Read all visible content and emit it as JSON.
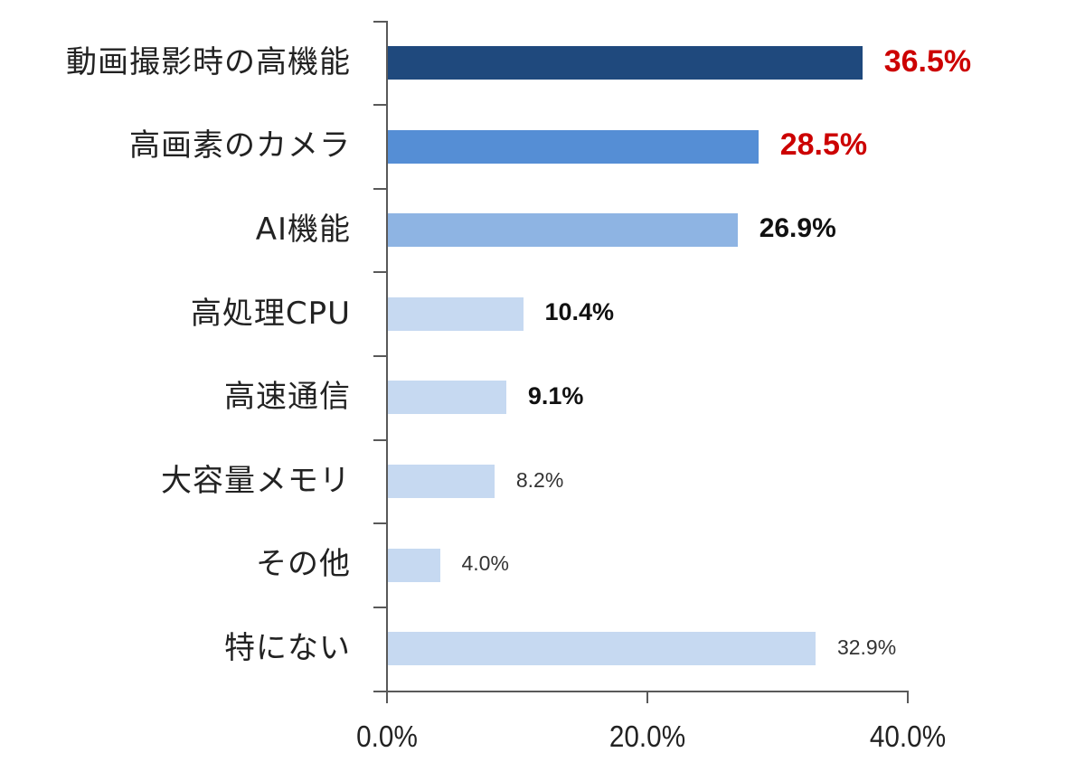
{
  "chart_data": {
    "type": "bar",
    "orientation": "horizontal",
    "title": "",
    "xlabel": "",
    "ylabel": "",
    "xlim": [
      0,
      40
    ],
    "x_ticks": [
      "0.0%",
      "20.0%",
      "40.0%"
    ],
    "grid": false,
    "legend": null,
    "categories": [
      "動画撮影時の高機能",
      "高画素のカメラ",
      "AI機能",
      "高処理CPU",
      "高速通信",
      "大容量メモリ",
      "その他",
      "特にない"
    ],
    "values": [
      36.5,
      28.5,
      26.9,
      10.4,
      9.1,
      8.2,
      4.0,
      32.9
    ],
    "value_labels": [
      "36.5%",
      "28.5%",
      "26.9%",
      "10.4%",
      "9.1%",
      "8.2%",
      "4.0%",
      "32.9%"
    ],
    "unit": "%"
  },
  "bars": [
    {
      "label": "動画撮影時の高機能",
      "value": 36.5,
      "value_label": "36.5%",
      "color": "#1F497D",
      "label_color": "#CC0000",
      "label_size": 34,
      "label_bold": true
    },
    {
      "label": "高画素のカメラ",
      "value": 28.5,
      "value_label": "28.5%",
      "color": "#558ED5",
      "label_color": "#CC0000",
      "label_size": 34,
      "label_bold": true
    },
    {
      "label": "AI機能",
      "value": 26.9,
      "value_label": "26.9%",
      "color": "#8EB4E3",
      "label_color": "#111111",
      "label_size": 30,
      "label_bold": true
    },
    {
      "label": "高処理CPU",
      "value": 10.4,
      "value_label": "10.4%",
      "color": "#C6D9F1",
      "label_color": "#111111",
      "label_size": 27,
      "label_bold": true
    },
    {
      "label": "高速通信",
      "value": 9.1,
      "value_label": "9.1%",
      "color": "#C6D9F1",
      "label_color": "#111111",
      "label_size": 27,
      "label_bold": true
    },
    {
      "label": "大容量メモリ",
      "value": 8.2,
      "value_label": "8.2%",
      "color": "#C6D9F1",
      "label_color": "#333333",
      "label_size": 23,
      "label_bold": false
    },
    {
      "label": "その他",
      "value": 4.0,
      "value_label": "4.0%",
      "color": "#C6D9F1",
      "label_color": "#333333",
      "label_size": 23,
      "label_bold": false
    },
    {
      "label": "特にない",
      "value": 32.9,
      "value_label": "32.9%",
      "color": "#C6D9F1",
      "label_color": "#333333",
      "label_size": 23,
      "label_bold": false
    }
  ],
  "axis": {
    "x_ticks": [
      {
        "value": 0,
        "label": "0.0%"
      },
      {
        "value": 20,
        "label": "20.0%"
      },
      {
        "value": 40,
        "label": "40.0%"
      }
    ]
  }
}
